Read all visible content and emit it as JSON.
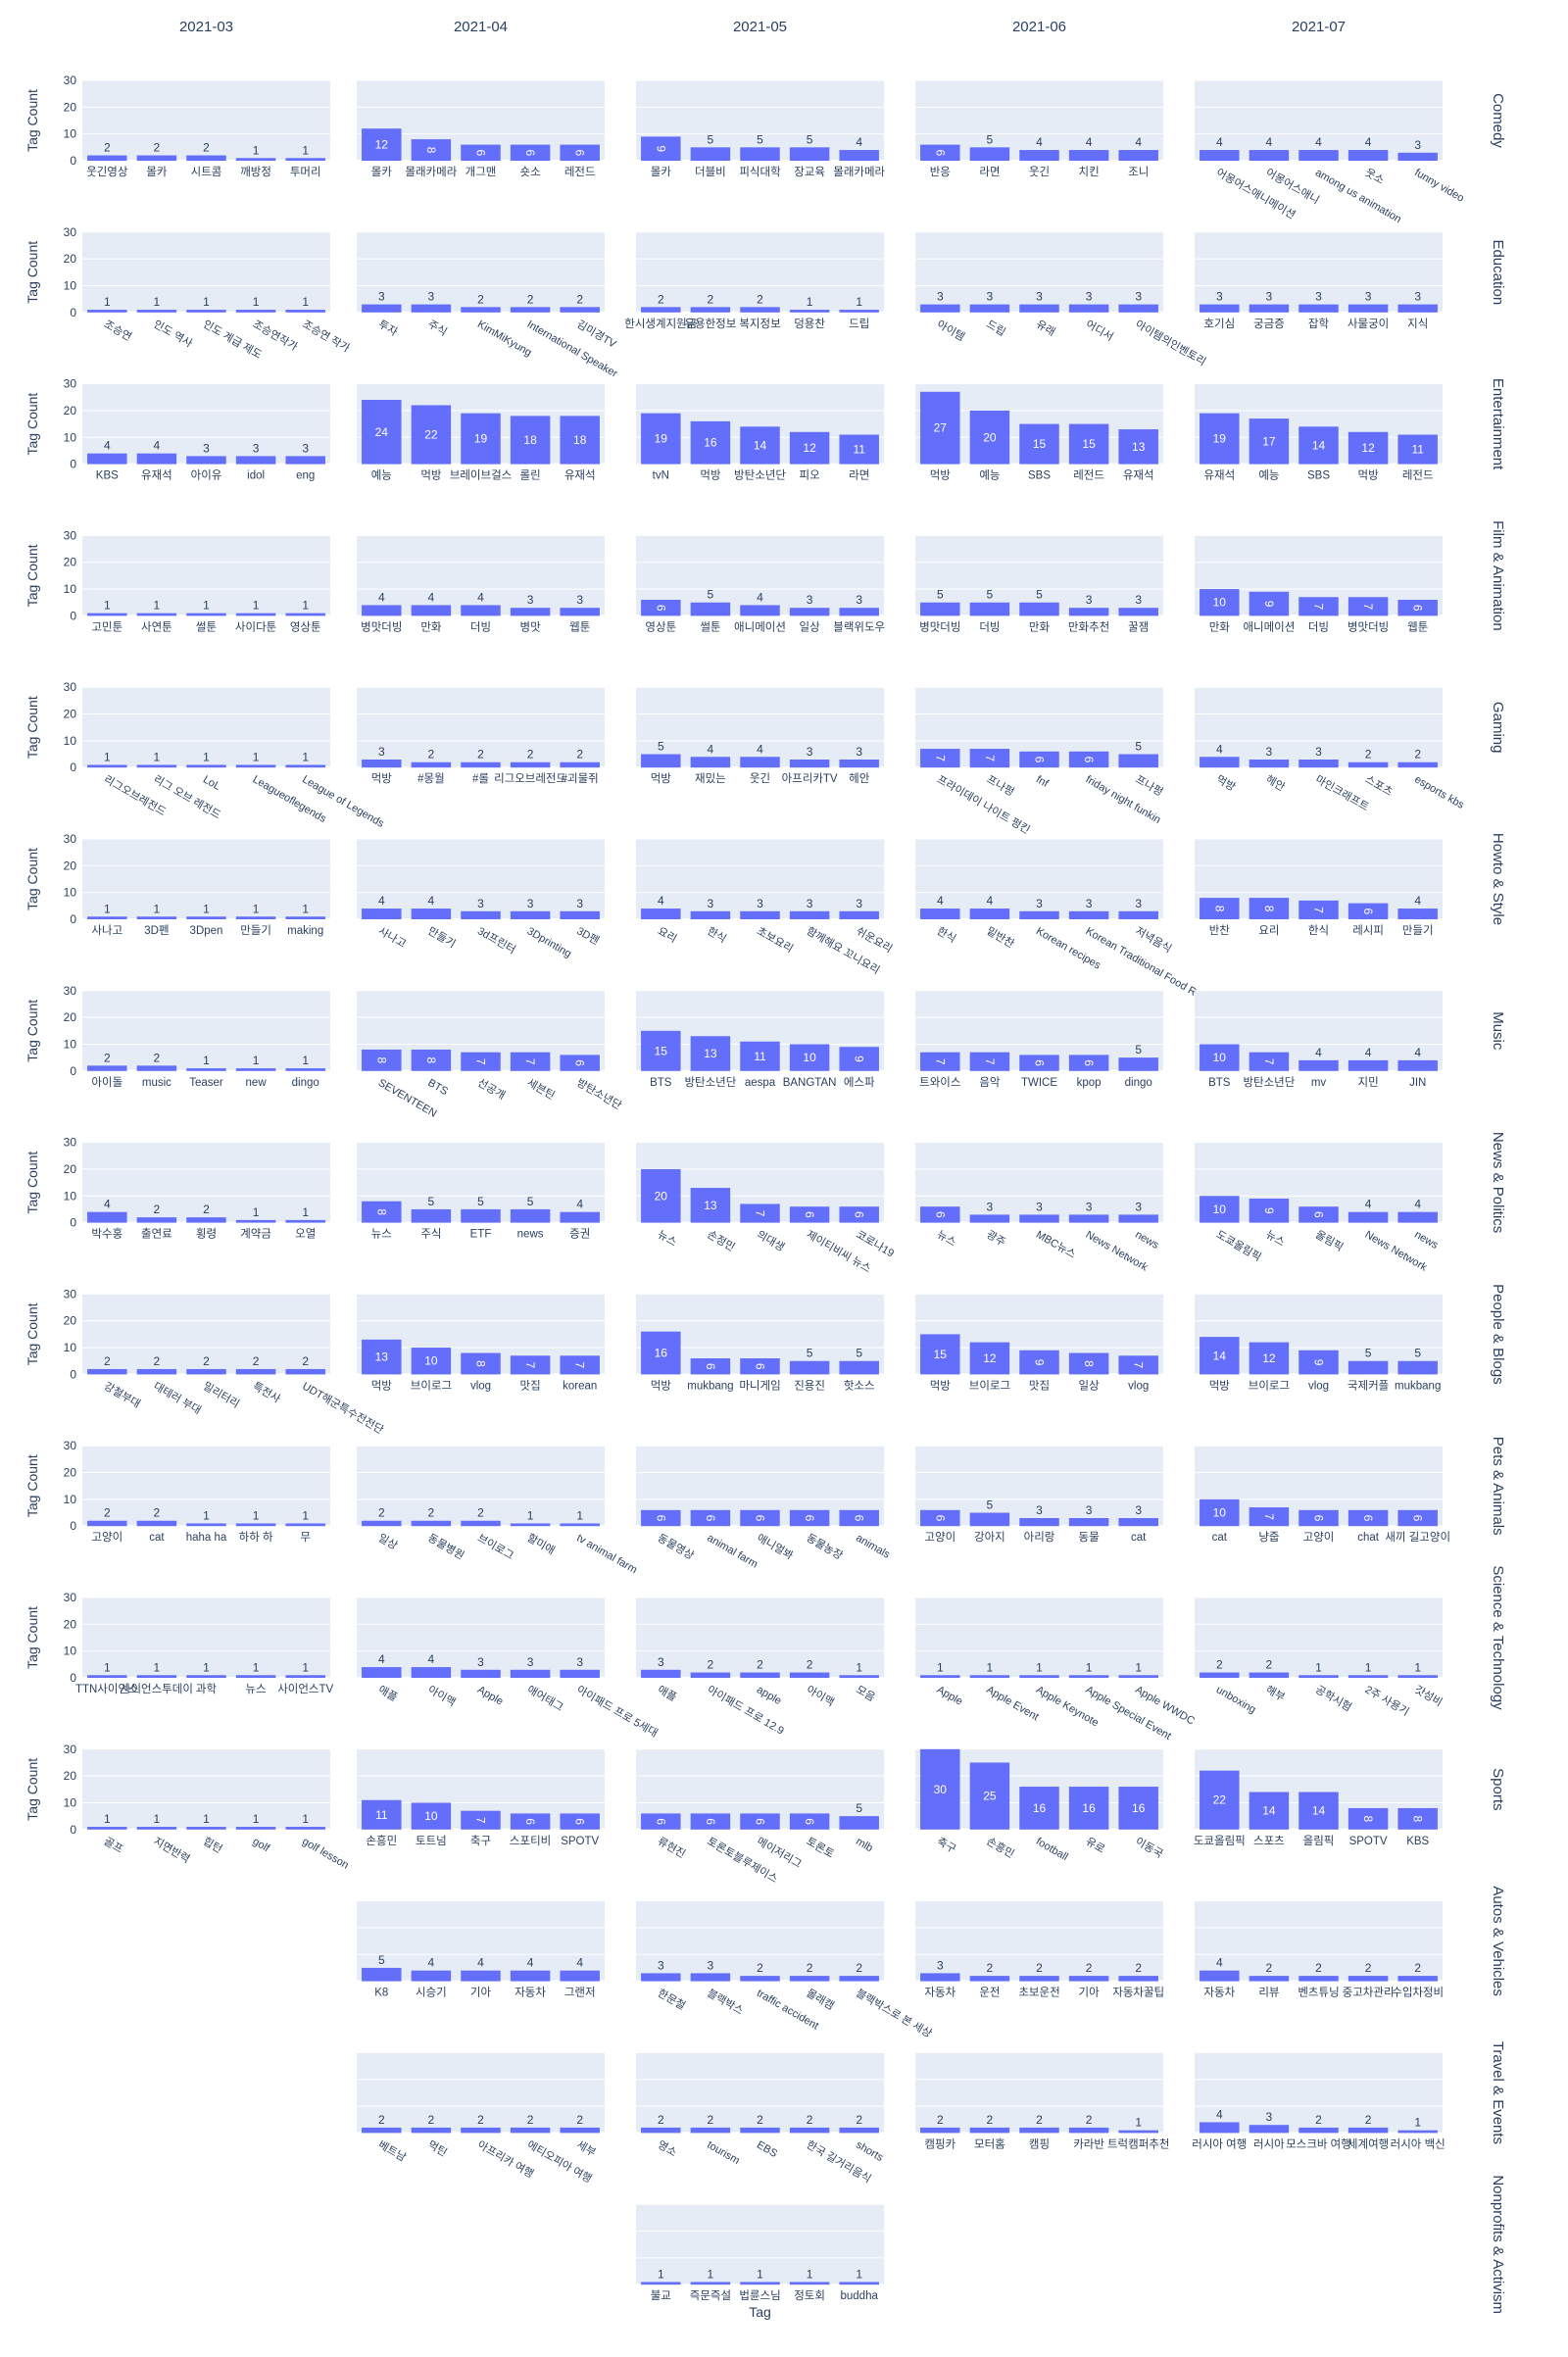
{
  "chart_data": {
    "type": "bar",
    "xlabel": "Tag",
    "ylabel": "Tag Count",
    "ylim": [
      0,
      30
    ],
    "yticks": [
      0,
      10,
      20,
      30
    ],
    "grid": true,
    "bar_color": "#636efa",
    "plot_bg": "#e5ecf6",
    "months": [
      "2021-03",
      "2021-04",
      "2021-05",
      "2021-06",
      "2021-07"
    ],
    "categories": [
      "Comedy",
      "Education",
      "Entertainment",
      "Film & Animation",
      "Gaming",
      "Howto & Style",
      "Music",
      "News & Politics",
      "People & Blogs",
      "Pets & Animals",
      "Science & Technology",
      "Sports",
      "Autos & Vehicles",
      "Travel & Events",
      "Nonprofits & Activism"
    ],
    "row_labels": [
      "Comedy",
      "Education",
      "Entertainment",
      "Film & Animation",
      "Gaming",
      "Howto & Style",
      "Music",
      "News & Politics",
      "People & Blogs",
      "Pets & Animals",
      "Science & Technology",
      "Sports",
      "Autos & Vehicles",
      "Travel & Events",
      "Nonprofits & Activism"
    ],
    "panels": [
      [
        {
          "tags": [
            "웃긴영상",
            "몰카",
            "시트콤",
            "깨방정",
            "투머리"
          ],
          "values": [
            2,
            2,
            2,
            1,
            1
          ]
        },
        {
          "tags": [
            "몰카",
            "몰래카메라",
            "개그맨",
            "숏소",
            "레전드"
          ],
          "values": [
            12,
            8,
            6,
            6,
            6
          ]
        },
        {
          "tags": [
            "몰카",
            "더블비",
            "피식대학",
            "장교육",
            "몰래카메라"
          ],
          "values": [
            9,
            5,
            5,
            5,
            4
          ]
        },
        {
          "tags": [
            "반응",
            "라면",
            "웃긴",
            "치킨",
            "조니"
          ],
          "values": [
            6,
            5,
            4,
            4,
            4
          ]
        },
        {
          "tags": [
            "어몽어스애니메이션",
            "어몽어스애니",
            "among us animation",
            "웃소",
            "funny video"
          ],
          "values": [
            4,
            4,
            4,
            4,
            3
          ]
        }
      ],
      [
        {
          "tags": [
            "조승연",
            "인도 역사",
            "인도 계급 제도",
            "조승연작가",
            "조승연 작가"
          ],
          "values": [
            1,
            1,
            1,
            1,
            1
          ]
        },
        {
          "tags": [
            "투자",
            "주식",
            "KimMiKyung",
            "International Speaker",
            "김미경TV"
          ],
          "values": [
            3,
            3,
            2,
            2,
            2
          ]
        },
        {
          "tags": [
            "한시생계지원금",
            "유용한정보",
            "복지정보",
            "덩용찬",
            "드립"
          ],
          "values": [
            2,
            2,
            2,
            1,
            1
          ]
        },
        {
          "tags": [
            "아이템",
            "드립",
            "유래",
            "어디서",
            "아이템의인벤토리"
          ],
          "values": [
            3,
            3,
            3,
            3,
            3
          ]
        },
        {
          "tags": [
            "호기심",
            "궁금증",
            "잡학",
            "사물궁이",
            "지식"
          ],
          "values": [
            3,
            3,
            3,
            3,
            3
          ]
        }
      ],
      [
        {
          "tags": [
            "KBS",
            "유재석",
            "아이유",
            "idol",
            "eng"
          ],
          "values": [
            4,
            4,
            3,
            3,
            3
          ]
        },
        {
          "tags": [
            "예능",
            "먹방",
            "브레이브걸스",
            "롤린",
            "유재석"
          ],
          "values": [
            24,
            22,
            19,
            18,
            18
          ]
        },
        {
          "tags": [
            "tvN",
            "먹방",
            "방탄소년단",
            "피오",
            "라면"
          ],
          "values": [
            19,
            16,
            14,
            12,
            11
          ]
        },
        {
          "tags": [
            "먹방",
            "예능",
            "SBS",
            "레전드",
            "유재석"
          ],
          "values": [
            27,
            20,
            15,
            15,
            13
          ]
        },
        {
          "tags": [
            "유재석",
            "예능",
            "SBS",
            "먹방",
            "레전드"
          ],
          "values": [
            19,
            17,
            14,
            12,
            11
          ]
        }
      ],
      [
        {
          "tags": [
            "고민툰",
            "사연툰",
            "썰툰",
            "사이다툰",
            "영상툰"
          ],
          "values": [
            1,
            1,
            1,
            1,
            1
          ]
        },
        {
          "tags": [
            "병맛더빙",
            "만화",
            "더빙",
            "병맛",
            "웹툰"
          ],
          "values": [
            4,
            4,
            4,
            3,
            3
          ]
        },
        {
          "tags": [
            "영상툰",
            "썰툰",
            "애니메이션",
            "일상",
            "블랙위도우"
          ],
          "values": [
            6,
            5,
            4,
            3,
            3
          ]
        },
        {
          "tags": [
            "병맛더빙",
            "더빙",
            "만화",
            "만화추천",
            "꿀잼"
          ],
          "values": [
            5,
            5,
            5,
            3,
            3
          ]
        },
        {
          "tags": [
            "만화",
            "애니메이션",
            "더빙",
            "병맛더빙",
            "웹툰"
          ],
          "values": [
            10,
            9,
            7,
            7,
            6
          ]
        }
      ],
      [
        {
          "tags": [
            "리그오브레전드",
            "리그 오브 레전드",
            "LoL",
            "Leagueoflegends",
            "League of Legends"
          ],
          "values": [
            1,
            1,
            1,
            1,
            1
          ]
        },
        {
          "tags": [
            "먹방",
            "#몽월",
            "#롤",
            "리그오브레전드",
            "#괴물쥐"
          ],
          "values": [
            3,
            2,
            2,
            2,
            2
          ]
        },
        {
          "tags": [
            "먹방",
            "재밌는",
            "웃긴",
            "아프리카TV",
            "헤안"
          ],
          "values": [
            5,
            4,
            4,
            3,
            3
          ]
        },
        {
          "tags": [
            "프라이데이 나이트 펑킨",
            "프나펑",
            "fnf",
            "friday night funkin",
            "프나펑"
          ],
          "values": [
            7,
            7,
            6,
            6,
            5
          ]
        },
        {
          "tags": [
            "먹방",
            "헤안",
            "마인크래프트",
            "스포츠",
            "esports kbs"
          ],
          "values": [
            4,
            3,
            3,
            2,
            2
          ]
        }
      ],
      [
        {
          "tags": [
            "사나고",
            "3D펜",
            "3Dpen",
            "만들기",
            "making"
          ],
          "values": [
            1,
            1,
            1,
            1,
            1
          ]
        },
        {
          "tags": [
            "사나고",
            "만들기",
            "3d프린터",
            "3Dprinting",
            "3D펜"
          ],
          "values": [
            4,
            4,
            3,
            3,
            3
          ]
        },
        {
          "tags": [
            "요리",
            "한식",
            "초보요리",
            "함께해요 꼬니요리",
            "쉬운요리"
          ],
          "values": [
            4,
            3,
            3,
            3,
            3
          ]
        },
        {
          "tags": [
            "한식",
            "밑반찬",
            "Korean recipes",
            "Korean Traditional Food Recipe",
            "저녁음식"
          ],
          "values": [
            4,
            4,
            3,
            3,
            3
          ]
        },
        {
          "tags": [
            "반찬",
            "요리",
            "한식",
            "레시피",
            "만들기"
          ],
          "values": [
            8,
            8,
            7,
            6,
            4
          ]
        }
      ],
      [
        {
          "tags": [
            "아이돌",
            "music",
            "Teaser",
            "new",
            "dingo"
          ],
          "values": [
            2,
            2,
            1,
            1,
            1
          ]
        },
        {
          "tags": [
            "SEVENTEEN",
            "BTS",
            "선공개",
            "세븐틴",
            "방탄소년단"
          ],
          "values": [
            8,
            8,
            7,
            7,
            6
          ]
        },
        {
          "tags": [
            "BTS",
            "방탄소년단",
            "aespa",
            "BANGTAN",
            "에스파"
          ],
          "values": [
            15,
            13,
            11,
            10,
            9
          ]
        },
        {
          "tags": [
            "트와이스",
            "음악",
            "TWICE",
            "kpop",
            "dingo"
          ],
          "values": [
            7,
            7,
            6,
            6,
            5
          ]
        },
        {
          "tags": [
            "BTS",
            "방탄소년단",
            "mv",
            "지민",
            "JIN"
          ],
          "values": [
            10,
            7,
            4,
            4,
            4
          ]
        }
      ],
      [
        {
          "tags": [
            "박수홍",
            "출연료",
            "횡령",
            "계약금",
            "오열"
          ],
          "values": [
            4,
            2,
            2,
            1,
            1
          ]
        },
        {
          "tags": [
            "뉴스",
            "주식",
            "ETF",
            "news",
            "증권"
          ],
          "values": [
            8,
            5,
            5,
            5,
            4
          ]
        },
        {
          "tags": [
            "뉴스",
            "손정민",
            "의대생",
            "제이티비씨 뉴스",
            "코로나19"
          ],
          "values": [
            20,
            13,
            7,
            6,
            6
          ]
        },
        {
          "tags": [
            "뉴스",
            "광주",
            "MBC뉴스",
            "News Network",
            "news"
          ],
          "values": [
            6,
            3,
            3,
            3,
            3
          ]
        },
        {
          "tags": [
            "도쿄올림픽",
            "뉴스",
            "올림픽",
            "News Network",
            "news"
          ],
          "values": [
            10,
            9,
            6,
            4,
            4
          ]
        }
      ],
      [
        {
          "tags": [
            "강철부대",
            "대테러 부대",
            "밀리터리",
            "특전사",
            "UDT해군특수전전단"
          ],
          "values": [
            2,
            2,
            2,
            2,
            2
          ]
        },
        {
          "tags": [
            "먹방",
            "브이로그",
            "vlog",
            "맛집",
            "korean"
          ],
          "values": [
            13,
            10,
            8,
            7,
            7
          ]
        },
        {
          "tags": [
            "먹방",
            "mukbang",
            "마니게임",
            "진용진",
            "핫소스"
          ],
          "values": [
            16,
            6,
            6,
            5,
            5
          ]
        },
        {
          "tags": [
            "먹방",
            "브이로그",
            "맛집",
            "일상",
            "vlog"
          ],
          "values": [
            15,
            12,
            9,
            8,
            7
          ]
        },
        {
          "tags": [
            "먹방",
            "브이로그",
            "vlog",
            "국제커플",
            "mukbang"
          ],
          "values": [
            14,
            12,
            9,
            5,
            5
          ]
        }
      ],
      [
        {
          "tags": [
            "고양이",
            "cat",
            "haha ha",
            "하하 하",
            "무"
          ],
          "values": [
            2,
            2,
            1,
            1,
            1
          ]
        },
        {
          "tags": [
            "일상",
            "동물병원",
            "브이로그",
            "할미애",
            "tv animal farm"
          ],
          "values": [
            2,
            2,
            2,
            1,
            1
          ]
        },
        {
          "tags": [
            "동물영상",
            "animal farm",
            "애니멀봐",
            "동물농장",
            "animals"
          ],
          "values": [
            6,
            6,
            6,
            6,
            6
          ]
        },
        {
          "tags": [
            "고양이",
            "강아지",
            "아리랑",
            "동물",
            "cat"
          ],
          "values": [
            6,
            5,
            3,
            3,
            3
          ]
        },
        {
          "tags": [
            "cat",
            "냥줍",
            "고양이",
            "chat",
            "새끼 길고양이"
          ],
          "values": [
            10,
            7,
            6,
            6,
            6
          ]
        }
      ],
      [
        {
          "tags": [
            "TTN사이언스",
            "사이언스투데이",
            "과학",
            "뉴스",
            "사이언스TV"
          ],
          "values": [
            1,
            1,
            1,
            1,
            1
          ]
        },
        {
          "tags": [
            "애플",
            "아이맥",
            "Apple",
            "애어태그",
            "아이패드 프로 5세대"
          ],
          "values": [
            4,
            4,
            3,
            3,
            3
          ]
        },
        {
          "tags": [
            "애플",
            "아이패드 프로 12.9",
            "apple",
            "아이맥",
            "모음"
          ],
          "values": [
            3,
            2,
            2,
            2,
            1
          ]
        },
        {
          "tags": [
            "Apple",
            "Apple Event",
            "Apple Keynote",
            "Apple Special Event",
            "Apple WWDC"
          ],
          "values": [
            1,
            1,
            1,
            1,
            1
          ]
        },
        {
          "tags": [
            "unboxing",
            "해부",
            "공학시험",
            "2주 사용기",
            "갓성비"
          ],
          "values": [
            2,
            2,
            1,
            1,
            1
          ]
        }
      ],
      [
        {
          "tags": [
            "골프",
            "지면반력",
            "힙턴",
            "golf",
            "golf lesson"
          ],
          "values": [
            1,
            1,
            1,
            1,
            1
          ]
        },
        {
          "tags": [
            "손흥민",
            "토트넘",
            "축구",
            "스포티비",
            "SPOTV"
          ],
          "values": [
            11,
            10,
            7,
            6,
            6
          ]
        },
        {
          "tags": [
            "류현진",
            "토론토블루제이스",
            "메이저리그",
            "토론토",
            "mlb"
          ],
          "values": [
            6,
            6,
            6,
            6,
            5
          ]
        },
        {
          "tags": [
            "축구",
            "손흥민",
            "football",
            "유로",
            "이동국"
          ],
          "values": [
            30,
            25,
            16,
            16,
            16
          ]
        },
        {
          "tags": [
            "도쿄올림픽",
            "스포츠",
            "올림픽",
            "SPOTV",
            "KBS"
          ],
          "values": [
            22,
            14,
            14,
            8,
            8
          ]
        }
      ],
      [
        null,
        {
          "tags": [
            "K8",
            "시승기",
            "기아",
            "자동차",
            "그랜저"
          ],
          "values": [
            5,
            4,
            4,
            4,
            4
          ]
        },
        {
          "tags": [
            "한문철",
            "블랙박스",
            "traffic accident",
            "몰래캠",
            "블랙박스로 본 세상"
          ],
          "values": [
            3,
            3,
            2,
            2,
            2
          ]
        },
        {
          "tags": [
            "자동차",
            "운전",
            "초보운전",
            "기아",
            "자동차꿀팁"
          ],
          "values": [
            3,
            2,
            2,
            2,
            2
          ]
        },
        {
          "tags": [
            "자동차",
            "리뷰",
            "벤츠튜닝",
            "중고차관리",
            "수입차정비"
          ],
          "values": [
            4,
            2,
            2,
            2,
            2
          ]
        }
      ],
      [
        null,
        {
          "tags": [
            "베트남",
            "먹틴",
            "아프리카 여행",
            "에티오피아 여행",
            "세부"
          ],
          "values": [
            2,
            2,
            2,
            2,
            2
          ]
        },
        {
          "tags": [
            "영소",
            "tourism",
            "EBS",
            "한국 길거리음식",
            "shorts"
          ],
          "values": [
            2,
            2,
            2,
            2,
            2
          ]
        },
        {
          "tags": [
            "캠핑카",
            "모터홈",
            "캠핑",
            "카라반",
            "트럭캠퍼추천"
          ],
          "values": [
            2,
            2,
            2,
            2,
            1
          ]
        },
        {
          "tags": [
            "러시아 여행",
            "러시아",
            "모스크바 여행",
            "세계여행",
            "러시아 백신"
          ],
          "values": [
            4,
            3,
            2,
            2,
            1
          ]
        }
      ],
      [
        null,
        null,
        {
          "tags": [
            "불교",
            "즉문즉설",
            "법륜스님",
            "정토회",
            "buddha"
          ],
          "values": [
            1,
            1,
            1,
            1,
            1
          ]
        },
        null,
        null
      ]
    ]
  }
}
